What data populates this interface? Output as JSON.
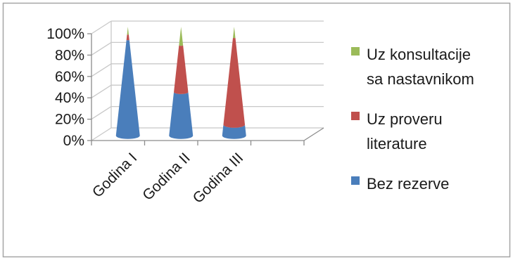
{
  "chart_data": {
    "type": "bar",
    "subtype": "stacked-100-percent-3d-cone",
    "categories": [
      "Godina I",
      "Godina II",
      "Godina III"
    ],
    "series": [
      {
        "name": "Bez rezerve",
        "values": [
          88,
          40,
          10
        ],
        "color": "#4A7EBB"
      },
      {
        "name": "Uz proveru literature",
        "values": [
          5,
          43,
          80
        ],
        "color": "#C0504D"
      },
      {
        "name": "Uz konsultacije sa nastavnikom",
        "values": [
          7,
          17,
          10
        ],
        "color": "#9BBB59"
      }
    ],
    "legend_order": [
      2,
      1,
      0
    ],
    "legend_labels": [
      [
        "Uz konsultacije",
        "sa nastavnikom"
      ],
      [
        "Uz proveru",
        "literature"
      ],
      [
        "Bez rezerve"
      ]
    ],
    "y_ticks": [
      "0%",
      "20%",
      "40%",
      "60%",
      "80%",
      "100%"
    ],
    "ylim": [
      0,
      100
    ],
    "grid": true,
    "legend_position": "right"
  }
}
